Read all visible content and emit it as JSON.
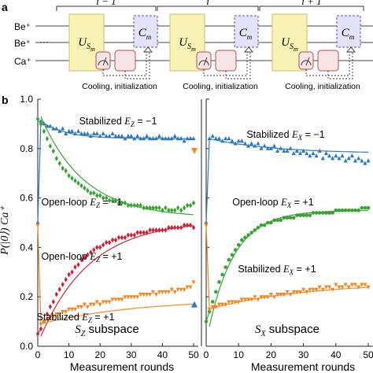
{
  "panel_a": {
    "panel_letter": "a",
    "round_labels": [
      "i − 1",
      "i",
      "i + 1"
    ],
    "ion_labels": [
      "Be⁺",
      "Be⁺",
      "Ca⁺"
    ],
    "gate_U": "U",
    "gate_U_sub": "S",
    "gate_U_subsub": "m",
    "gate_C": "C",
    "gate_C_sub": "m",
    "cooling_label": "Cooling, initialization",
    "colors": {
      "unitary": "#f8f3b4",
      "unitary_border": "#c9c06a",
      "cond": "#e3e3fb",
      "cond_border": "#5555aa",
      "cool": "#f8e4e4",
      "cool_border": "#b05050"
    }
  },
  "panel_b": {
    "panel_letter": "b",
    "ylabel": "P(|0⟩) Ca⁺",
    "xlabel_left": "Measurement rounds",
    "xlabel_right": "Measurement rounds"
  },
  "chart_data": [
    {
      "type": "line",
      "subspace_label": "S",
      "subspace_sub": "Z",
      "subspace_word": " subspace",
      "xlim": [
        0,
        50
      ],
      "ylim": [
        0,
        1.0
      ],
      "xticks": [
        0,
        10,
        20,
        30,
        40,
        50
      ],
      "yticks": [
        0.0,
        0.2,
        0.4,
        0.6,
        0.8,
        1.0
      ],
      "series": [
        {
          "name": "Stabilized E_Z = −1",
          "label_main": "Stabilized ",
          "label_var": "E",
          "label_sub": "Z",
          "label_val": " = −1",
          "color": "#2f7ab8",
          "marker": "triangle-up",
          "start": 0.5,
          "data": [
            0.91,
            0.9,
            0.89,
            0.89,
            0.88,
            0.88,
            0.87,
            0.88,
            0.86,
            0.87,
            0.87,
            0.86,
            0.87,
            0.86,
            0.86,
            0.86,
            0.85,
            0.86,
            0.86,
            0.85,
            0.86,
            0.85,
            0.85,
            0.86,
            0.85,
            0.85,
            0.85,
            0.84,
            0.85,
            0.85,
            0.84,
            0.85,
            0.84,
            0.84,
            0.85,
            0.84,
            0.84,
            0.84,
            0.85,
            0.84,
            0.84,
            0.84,
            0.84,
            0.85,
            0.84,
            0.84,
            0.83,
            0.84,
            0.84,
            0.84
          ],
          "model": {
            "a": 0.84,
            "b": 0.07,
            "tau": 8
          }
        },
        {
          "name": "Open-loop E_Z = −1",
          "label_main": "Open-loop ",
          "label_var": "E",
          "label_sub": "Z",
          "label_val": " = −1",
          "color": "#3aa335",
          "marker": "diamond",
          "start": 0.92,
          "data": [
            0.9,
            0.87,
            0.84,
            0.81,
            0.79,
            0.76,
            0.74,
            0.72,
            0.71,
            0.69,
            0.68,
            0.67,
            0.66,
            0.65,
            0.64,
            0.63,
            0.62,
            0.62,
            0.61,
            0.61,
            0.6,
            0.6,
            0.59,
            0.59,
            0.59,
            0.58,
            0.58,
            0.58,
            0.57,
            0.57,
            0.57,
            0.57,
            0.57,
            0.56,
            0.56,
            0.56,
            0.56,
            0.56,
            0.56,
            0.55,
            0.56,
            0.55,
            0.55,
            0.55,
            0.56,
            0.55,
            0.56,
            0.57,
            0.57,
            0.58
          ],
          "model": {
            "a": 0.52,
            "b": 0.41,
            "tau": 14
          }
        },
        {
          "name": "Open-loop E_Z = +1",
          "label_main": "Open-loop ",
          "label_var": "E",
          "label_sub": "Z",
          "label_val": " = +1",
          "color": "#c8283c",
          "marker": "diamond",
          "start": 0.05,
          "data": [
            0.07,
            0.1,
            0.13,
            0.16,
            0.18,
            0.21,
            0.23,
            0.25,
            0.27,
            0.29,
            0.3,
            0.32,
            0.33,
            0.35,
            0.36,
            0.37,
            0.38,
            0.39,
            0.4,
            0.4,
            0.41,
            0.42,
            0.42,
            0.43,
            0.43,
            0.44,
            0.44,
            0.44,
            0.45,
            0.45,
            0.45,
            0.46,
            0.46,
            0.46,
            0.46,
            0.47,
            0.47,
            0.47,
            0.47,
            0.47,
            0.47,
            0.48,
            0.48,
            0.48,
            0.48,
            0.48,
            0.49,
            0.49,
            0.49,
            0.48
          ],
          "model": {
            "a": 0.51,
            "b": -0.47,
            "tau": 16
          }
        },
        {
          "name": "Stabilized E_Z = +1",
          "label_main": "Stabilized ",
          "label_var": "E",
          "label_sub": "Z",
          "label_val": " = +1",
          "color": "#f08a24",
          "marker": "triangle-down",
          "start": 0.49,
          "data": [
            0.09,
            0.1,
            0.11,
            0.12,
            0.12,
            0.13,
            0.13,
            0.14,
            0.14,
            0.15,
            0.15,
            0.15,
            0.16,
            0.16,
            0.17,
            0.16,
            0.17,
            0.17,
            0.18,
            0.17,
            0.18,
            0.18,
            0.18,
            0.19,
            0.19,
            0.19,
            0.19,
            0.2,
            0.2,
            0.2,
            0.2,
            0.2,
            0.21,
            0.21,
            0.21,
            0.21,
            0.22,
            0.21,
            0.22,
            0.22,
            0.22,
            0.22,
            0.23,
            0.22,
            0.23,
            0.23,
            0.23,
            0.24,
            0.24,
            0.26
          ],
          "model": {
            "a": 0.19,
            "b": -0.1,
            "tau": 30
          }
        }
      ],
      "end_markers": [
        {
          "name": "Stabilized E_Z = −1 end",
          "x": 50,
          "y": 0.79,
          "color": "#f08a24",
          "marker": "triangle-down"
        },
        {
          "name": "Stabilized E_Z = +1 end",
          "x": 50,
          "y": 0.17,
          "color": "#2f7ab8",
          "marker": "triangle-up"
        }
      ]
    },
    {
      "type": "line",
      "subspace_label": "S",
      "subspace_sub": "X",
      "subspace_word": " subspace",
      "xlim": [
        0,
        50
      ],
      "ylim": [
        0,
        1.0
      ],
      "xticks": [
        0,
        10,
        20,
        30,
        40,
        50
      ],
      "yticks": [
        0.0,
        0.2,
        0.4,
        0.6,
        0.8,
        1.0
      ],
      "series": [
        {
          "name": "Stabilized E_X = −1",
          "label_main": "Stabilized ",
          "label_var": "E",
          "label_sub": "X",
          "label_val": " = −1",
          "color": "#2f7ab8",
          "marker": "triangle-up",
          "start": 0.5,
          "data": [
            0.84,
            0.85,
            0.84,
            0.84,
            0.83,
            0.84,
            0.84,
            0.83,
            0.82,
            0.83,
            0.83,
            0.82,
            0.81,
            0.82,
            0.81,
            0.82,
            0.8,
            0.81,
            0.8,
            0.8,
            0.81,
            0.79,
            0.8,
            0.79,
            0.79,
            0.8,
            0.78,
            0.79,
            0.78,
            0.79,
            0.78,
            0.77,
            0.78,
            0.77,
            0.79,
            0.76,
            0.78,
            0.77,
            0.76,
            0.77,
            0.76,
            0.77,
            0.75,
            0.76,
            0.77,
            0.75,
            0.76,
            0.75,
            0.74,
            0.75
          ],
          "model": {
            "a": 0.78,
            "b": 0.06,
            "tau": 20
          }
        },
        {
          "name": "Open-loop E_X = +1",
          "label_main": "Open-loop ",
          "label_var": "E",
          "label_sub": "X",
          "label_val": " = +1",
          "color": "#3aa335",
          "marker": "circle",
          "start": 0.1,
          "data": [
            0.14,
            0.18,
            0.22,
            0.26,
            0.29,
            0.32,
            0.35,
            0.37,
            0.39,
            0.41,
            0.43,
            0.44,
            0.45,
            0.46,
            0.47,
            0.48,
            0.49,
            0.49,
            0.5,
            0.5,
            0.51,
            0.51,
            0.51,
            0.52,
            0.52,
            0.52,
            0.52,
            0.53,
            0.53,
            0.53,
            0.53,
            0.53,
            0.54,
            0.54,
            0.54,
            0.54,
            0.54,
            0.54,
            0.54,
            0.55,
            0.55,
            0.55,
            0.55,
            0.55,
            0.55,
            0.55,
            0.55,
            0.56,
            0.56,
            0.56
          ],
          "model": {
            "a": 0.55,
            "b": -0.47,
            "tau": 8
          }
        },
        {
          "name": "Stabilized E_X = +1",
          "label_main": "Stabilized ",
          "label_var": "E",
          "label_sub": "X",
          "label_val": " = +1",
          "color": "#f08a24",
          "marker": "triangle-down",
          "start": 0.49,
          "data": [
            0.15,
            0.16,
            0.16,
            0.17,
            0.17,
            0.17,
            0.18,
            0.18,
            0.18,
            0.18,
            0.19,
            0.19,
            0.19,
            0.19,
            0.2,
            0.19,
            0.2,
            0.2,
            0.2,
            0.21,
            0.2,
            0.21,
            0.21,
            0.21,
            0.22,
            0.21,
            0.22,
            0.22,
            0.22,
            0.23,
            0.22,
            0.23,
            0.23,
            0.23,
            0.24,
            0.23,
            0.24,
            0.24,
            0.23,
            0.25,
            0.24,
            0.24,
            0.25,
            0.24,
            0.25,
            0.25,
            0.24,
            0.25,
            0.25,
            0.24
          ],
          "model": {
            "a": 0.26,
            "b": -0.11,
            "tau": 30
          }
        }
      ],
      "end_markers": []
    }
  ]
}
